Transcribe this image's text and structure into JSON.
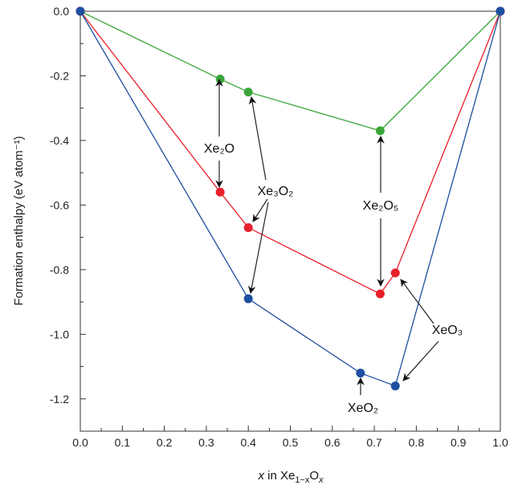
{
  "chart_data": {
    "type": "line",
    "title": "",
    "xlabel": "x in Xe1−xOx",
    "xlabel_parts": {
      "italic_x": "x",
      "text": " in Xe",
      "sub1": "1−x",
      "o": "O",
      "sub2": "x"
    },
    "ylabel": "Formation enthalpy (eV atom⁻¹)",
    "xlim": [
      0,
      1
    ],
    "ylim": [
      -1.3,
      0
    ],
    "xticks": [
      "0.0",
      "0.1",
      "0.2",
      "0.3",
      "0.4",
      "0.5",
      "0.6",
      "0.7",
      "0.8",
      "0.9",
      "1.0"
    ],
    "yticks": [
      "0.0",
      "-0.2",
      "-0.4",
      "-0.6",
      "-0.8",
      "-1.0",
      "-1.2"
    ],
    "grid": false,
    "series": [
      {
        "name": "green",
        "color": "#3aa639",
        "x": [
          0,
          0.333,
          0.4,
          0.714,
          1.0
        ],
        "y": [
          0,
          -0.21,
          -0.25,
          -0.37,
          0
        ]
      },
      {
        "name": "red",
        "color": "#e8202a",
        "x": [
          0,
          0.333,
          0.4,
          0.714,
          0.75,
          1.0
        ],
        "y": [
          0,
          -0.56,
          -0.67,
          -0.875,
          -0.81,
          0
        ]
      },
      {
        "name": "blue",
        "color": "#1d4fa0",
        "x": [
          0,
          0.4,
          0.667,
          0.75,
          1.0
        ],
        "y": [
          0,
          -0.89,
          -1.12,
          -1.16,
          0
        ]
      }
    ],
    "annotations": [
      "Xe₂O",
      "Xe₃O₂",
      "Xe₂O₅",
      "XeO₃",
      "XeO₂"
    ]
  }
}
